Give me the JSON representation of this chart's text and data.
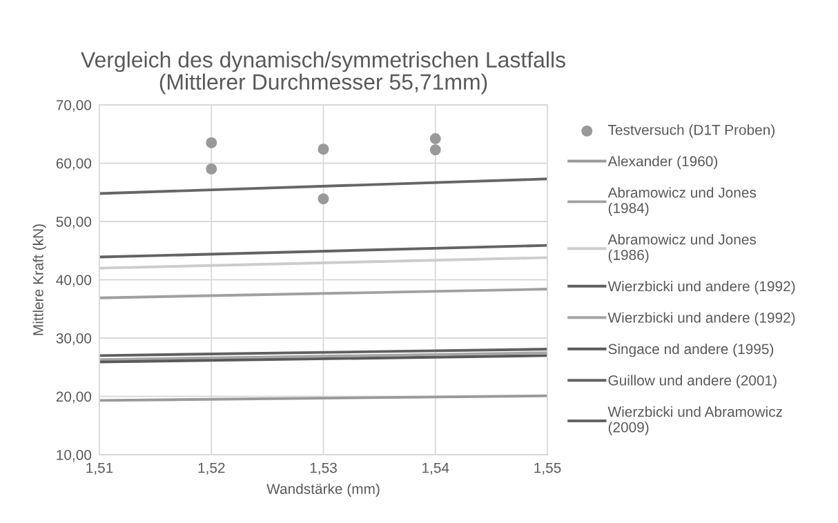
{
  "chart_data": {
    "type": "line",
    "title": "Vergleich des dynamisch/symmetrischen Lastfalls\n(Mittlerer Durchmesser 55,71mm)",
    "xlabel": "Wandstärke (mm)",
    "ylabel": "Mittlere Kraft (kN)",
    "xlim": [
      1.51,
      1.55
    ],
    "ylim": [
      10,
      70
    ],
    "xticks": [
      {
        "value": 1.51,
        "label": "1,51"
      },
      {
        "value": 1.52,
        "label": "1,52"
      },
      {
        "value": 1.53,
        "label": "1,53"
      },
      {
        "value": 1.54,
        "label": "1,54"
      },
      {
        "value": 1.55,
        "label": "1,55"
      }
    ],
    "yticks": [
      {
        "value": 10,
        "label": "10,00"
      },
      {
        "value": 20,
        "label": "20,00"
      },
      {
        "value": 30,
        "label": "30,00"
      },
      {
        "value": 40,
        "label": "40,00"
      },
      {
        "value": 50,
        "label": "50,00"
      },
      {
        "value": 60,
        "label": "60,00"
      },
      {
        "value": 70,
        "label": "70,00"
      }
    ],
    "grid": true,
    "legend": "right",
    "series": [
      {
        "name": "Testversuch (D1T Proben)",
        "type": "scatter",
        "color": "#999999",
        "x": [
          1.52,
          1.52,
          1.53,
          1.53,
          1.54,
          1.54
        ],
        "values": [
          63.5,
          59.0,
          62.4,
          53.9,
          64.2,
          62.3
        ]
      },
      {
        "name": "Alexander (1960)",
        "color": "#9a9a9a",
        "x": [
          1.51,
          1.55
        ],
        "values": [
          19.3,
          20.1
        ]
      },
      {
        "name": "Abramowicz und Jones\n(1984)",
        "color": "#a0a0a0",
        "x": [
          1.51,
          1.55
        ],
        "values": [
          36.9,
          38.4
        ]
      },
      {
        "name": "Abramowicz und Jones\n(1986)",
        "color": "#cccccc",
        "x": [
          1.51,
          1.55
        ],
        "values": [
          42.0,
          43.8
        ]
      },
      {
        "name": "Wierzbicki und andere (1992)",
        "color": "#5f5f5f",
        "x": [
          1.51,
          1.55
        ],
        "values": [
          27.0,
          28.1
        ]
      },
      {
        "name": "Wierzbicki und andere (1992)",
        "color": "#a5a5a5",
        "x": [
          1.51,
          1.55
        ],
        "values": [
          26.3,
          27.5
        ]
      },
      {
        "name": "Singace nd andere (1995)",
        "color": "#595959",
        "x": [
          1.51,
          1.55
        ],
        "values": [
          25.9,
          27.0
        ]
      },
      {
        "name": "Guillow und andere (2001)",
        "color": "#636363",
        "x": [
          1.51,
          1.55
        ],
        "values": [
          43.9,
          45.9
        ]
      },
      {
        "name": "Wierzbicki und Abramowicz\n(2009)",
        "color": "#666666",
        "x": [
          1.51,
          1.55
        ],
        "values": [
          54.8,
          57.3
        ]
      }
    ]
  }
}
